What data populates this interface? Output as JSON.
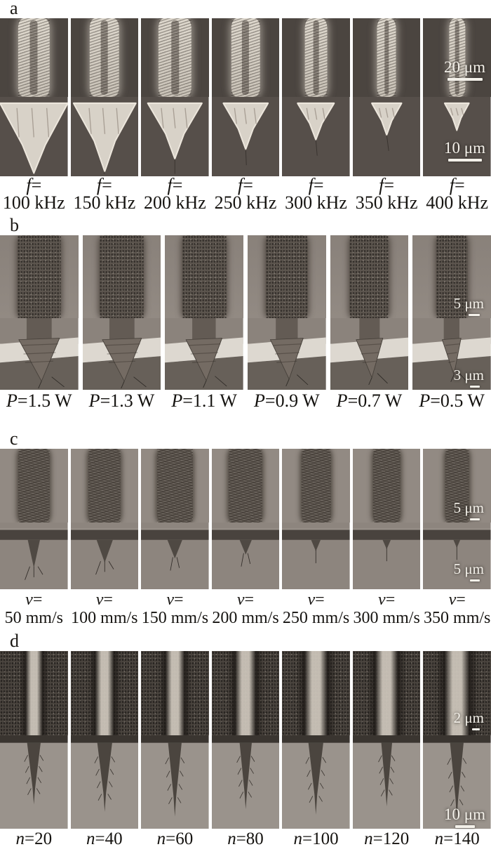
{
  "figure": {
    "colors": {
      "background": "#ffffff",
      "label_text": "#151310",
      "scalebar": "#f3f0e9",
      "sem_dark_field": "#4b4540",
      "sem_light_field": "#928a83"
    },
    "panels": [
      {
        "letter": "a",
        "label_layout": "two-line",
        "scale_top": "20 μm",
        "scale_bottom": "10 μm",
        "items": [
          {
            "var": "f",
            "assign": "=",
            "value": "100 kHz"
          },
          {
            "var": "f",
            "assign": "=",
            "value": "150 kHz"
          },
          {
            "var": "f",
            "assign": "=",
            "value": "200 kHz"
          },
          {
            "var": "f",
            "assign": "=",
            "value": "250 kHz"
          },
          {
            "var": "f",
            "assign": "=",
            "value": "300 kHz"
          },
          {
            "var": "f",
            "assign": "=",
            "value": "350 kHz"
          },
          {
            "var": "f",
            "assign": "=",
            "value": "400 kHz"
          }
        ]
      },
      {
        "letter": "b",
        "label_layout": "one-line",
        "scale_top": "5 μm",
        "scale_bottom": "3 μm",
        "items": [
          {
            "var": "P",
            "assign": "=",
            "value": "1.5 W"
          },
          {
            "var": "P",
            "assign": "=",
            "value": "1.3 W"
          },
          {
            "var": "P",
            "assign": "=",
            "value": "1.1 W"
          },
          {
            "var": "P",
            "assign": "=",
            "value": "0.9 W"
          },
          {
            "var": "P",
            "assign": "=",
            "value": "0.7 W"
          },
          {
            "var": "P",
            "assign": "=",
            "value": "0.5 W"
          }
        ]
      },
      {
        "letter": "c",
        "label_layout": "two-line",
        "scale_top": "5 μm",
        "scale_bottom": "5 μm",
        "items": [
          {
            "var": "v",
            "assign": "=",
            "value": "50 mm/s"
          },
          {
            "var": "v",
            "assign": "=",
            "value": "100 mm/s"
          },
          {
            "var": "v",
            "assign": "=",
            "value": "150 mm/s"
          },
          {
            "var": "v",
            "assign": "=",
            "value": "200 mm/s"
          },
          {
            "var": "v",
            "assign": "=",
            "value": "250 mm/s"
          },
          {
            "var": "v",
            "assign": "=",
            "value": "300 mm/s"
          },
          {
            "var": "v",
            "assign": "=",
            "value": "350 mm/s"
          }
        ]
      },
      {
        "letter": "d",
        "label_layout": "one-line",
        "scale_top": "2 μm",
        "scale_bottom": "10 μm",
        "items": [
          {
            "var": "n",
            "assign": "=",
            "value": "20"
          },
          {
            "var": "n",
            "assign": "=",
            "value": "40"
          },
          {
            "var": "n",
            "assign": "=",
            "value": "60"
          },
          {
            "var": "n",
            "assign": "=",
            "value": "80"
          },
          {
            "var": "n",
            "assign": "=",
            "value": "100"
          },
          {
            "var": "n",
            "assign": "=",
            "value": "120"
          },
          {
            "var": "n",
            "assign": "=",
            "value": "140"
          }
        ]
      }
    ]
  }
}
